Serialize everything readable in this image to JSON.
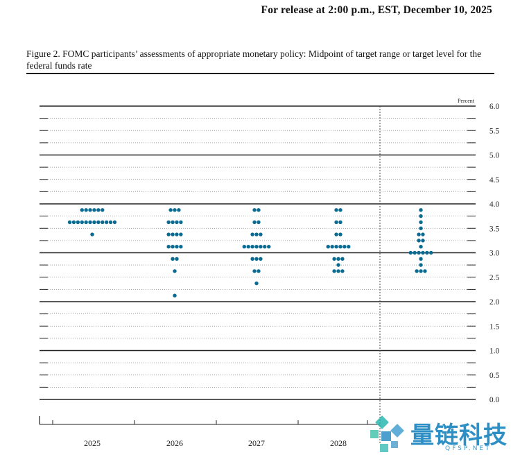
{
  "release": "For release at 2:00 p.m., EST, December 10, 2025",
  "figure_title": "Figure 2. FOMC participants’ assessments of appropriate monetary policy: Midpoint of target range or target level for the federal funds rate",
  "watermark": {
    "text": "量链科技",
    "sub": "QFSP.NET"
  },
  "chart_data": {
    "type": "scatter",
    "subtype": "dot-plot",
    "ylabel": "Percent",
    "ylim": [
      0,
      6
    ],
    "yticks": [
      "6.0",
      "5.5",
      "5.0",
      "4.5",
      "4.0",
      "3.5",
      "3.0",
      "2.5",
      "2.0",
      "1.5",
      "1.0",
      "0.5",
      "0.0"
    ],
    "categories": [
      "2025",
      "2026",
      "2027",
      "2028",
      ""
    ],
    "grid": true,
    "series": [
      {
        "category": "2025",
        "dots": [
          {
            "y": 3.875,
            "count": 6
          },
          {
            "y": 3.625,
            "count": 12
          },
          {
            "y": 3.375,
            "count": 1
          }
        ]
      },
      {
        "category": "2026",
        "dots": [
          {
            "y": 3.875,
            "count": 3
          },
          {
            "y": 3.625,
            "count": 4
          },
          {
            "y": 3.375,
            "count": 4
          },
          {
            "y": 3.125,
            "count": 4
          },
          {
            "y": 2.875,
            "count": 2
          },
          {
            "y": 2.625,
            "count": 1
          },
          {
            "y": 2.125,
            "count": 1
          }
        ]
      },
      {
        "category": "2027",
        "dots": [
          {
            "y": 3.875,
            "count": 2
          },
          {
            "y": 3.625,
            "count": 2
          },
          {
            "y": 3.375,
            "count": 3
          },
          {
            "y": 3.125,
            "count": 7
          },
          {
            "y": 2.875,
            "count": 3
          },
          {
            "y": 2.625,
            "count": 2
          },
          {
            "y": 2.375,
            "count": 1
          }
        ]
      },
      {
        "category": "2028",
        "dots": [
          {
            "y": 3.875,
            "count": 2
          },
          {
            "y": 3.625,
            "count": 2
          },
          {
            "y": 3.375,
            "count": 2
          },
          {
            "y": 3.125,
            "count": 6
          },
          {
            "y": 2.875,
            "count": 3
          },
          {
            "y": 2.75,
            "count": 1
          },
          {
            "y": 2.625,
            "count": 3
          }
        ]
      },
      {
        "category": "",
        "dots": [
          {
            "y": 3.875,
            "count": 1
          },
          {
            "y": 3.75,
            "count": 1
          },
          {
            "y": 3.625,
            "count": 1
          },
          {
            "y": 3.5,
            "count": 1
          },
          {
            "y": 3.375,
            "count": 2
          },
          {
            "y": 3.25,
            "count": 2
          },
          {
            "y": 3.125,
            "count": 1
          },
          {
            "y": 3.0,
            "count": 6
          },
          {
            "y": 2.875,
            "count": 1
          },
          {
            "y": 2.75,
            "count": 1
          },
          {
            "y": 2.625,
            "count": 3
          }
        ]
      }
    ],
    "colors": {
      "dot": "#0a6a8f",
      "axis": "#222222",
      "dotted": "#888888"
    }
  }
}
